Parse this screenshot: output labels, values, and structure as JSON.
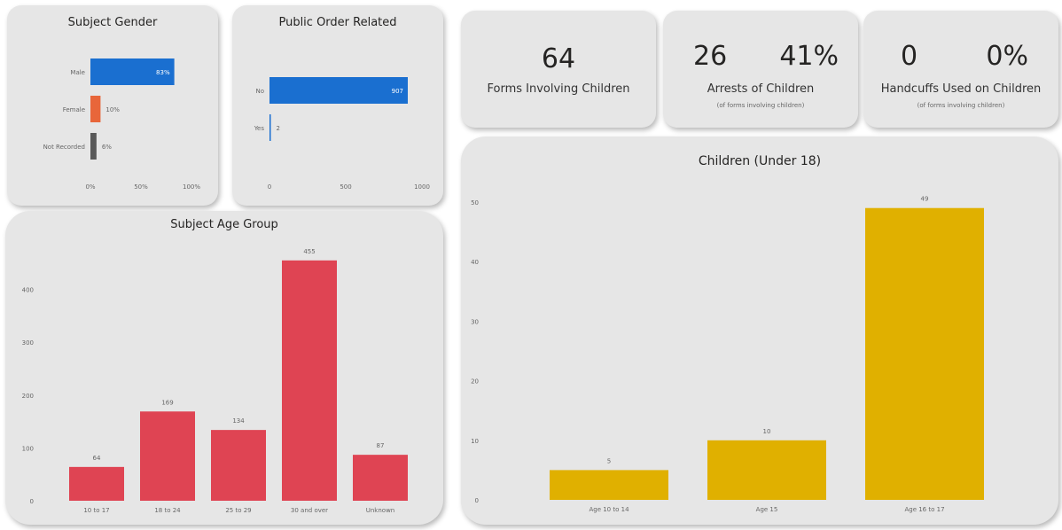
{
  "kpis": {
    "forms": {
      "value": "64",
      "label": "Forms Involving Children"
    },
    "arrests": {
      "value": "26",
      "percent": "41%",
      "label": "Arrests of Children",
      "sublabel": "(of forms involving children)"
    },
    "handcuffs": {
      "value": "0",
      "percent": "0%",
      "label": "Handcuffs Used on Children",
      "sublabel": "(of forms involving children)"
    }
  },
  "colors": {
    "blue": "#1a6fd0",
    "orange": "#e8663a",
    "gray": "#595959",
    "red": "#df4453",
    "gold": "#e0b000",
    "card": "#e6e6e6"
  },
  "chart_data": [
    {
      "id": "gender",
      "type": "bar",
      "orientation": "horizontal",
      "title": "Subject Gender",
      "categories": [
        "Male",
        "Female",
        "Not Recorded"
      ],
      "values": [
        83,
        10,
        6
      ],
      "value_labels": [
        "83%",
        "10%",
        "6%"
      ],
      "colors": [
        "#1a6fd0",
        "#e8663a",
        "#595959"
      ],
      "xlim": [
        0,
        100
      ],
      "x_ticks": [
        "0%",
        "50%",
        "100%"
      ],
      "x_tick_values": [
        0,
        50,
        100
      ],
      "grid": false
    },
    {
      "id": "public",
      "type": "bar",
      "orientation": "horizontal",
      "title": "Public Order Related",
      "categories": [
        "No",
        "Yes"
      ],
      "values": [
        907,
        2
      ],
      "value_labels": [
        "907",
        "2"
      ],
      "colors": [
        "#1a6fd0",
        "#1a6fd0"
      ],
      "xlim": [
        0,
        1000
      ],
      "x_ticks": [
        "0",
        "500",
        "1000"
      ],
      "x_tick_values": [
        0,
        500,
        1000
      ],
      "grid": false
    },
    {
      "id": "age",
      "type": "bar",
      "title": "Subject Age Group",
      "categories": [
        "10 to 17",
        "18 to 24",
        "25 to 29",
        "30 and over",
        "Unknown"
      ],
      "values": [
        64,
        169,
        134,
        455,
        87
      ],
      "color": "#df4453",
      "ylim": [
        0,
        500
      ],
      "y_ticks": [
        0,
        100,
        200,
        300,
        400
      ],
      "grid": false
    },
    {
      "id": "children",
      "type": "bar",
      "title": "Children (Under 18)",
      "categories": [
        "Age 10 to 14",
        "Age 15",
        "Age 16 to 17"
      ],
      "values": [
        5,
        10,
        49
      ],
      "color": "#e0b000",
      "ylim": [
        0,
        50
      ],
      "y_ticks": [
        0,
        10,
        20,
        30,
        40,
        50
      ],
      "grid": false
    }
  ]
}
